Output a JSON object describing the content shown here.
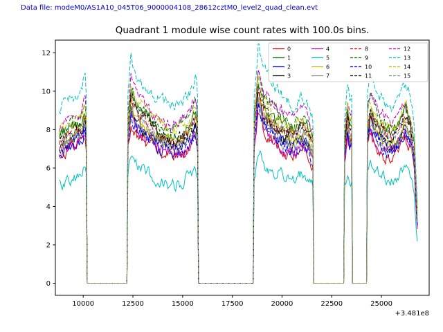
{
  "header": {
    "data_file_label": "Data file: modeM0/AS1A10_045T06_9000004108_28612cztM0_level2_quad_clean.evt"
  },
  "chart_data": {
    "type": "line",
    "title": "Quadrant 1 module wise count rates with 100.0s bins.",
    "xlabel": "",
    "ylabel": "",
    "x_offset_label": "+3.481e8",
    "xlim": [
      8600,
      27400
    ],
    "ylim": [
      -0.63,
      12.66
    ],
    "xticks": [
      10000,
      12500,
      15000,
      17500,
      20000,
      22500,
      25000
    ],
    "yticks": [
      0,
      2,
      4,
      6,
      8,
      10,
      12
    ],
    "grid": false,
    "legend": {
      "position": "upper right",
      "columns": 4
    },
    "sample_step": 50,
    "noise_amp": 0.55,
    "segments": [
      {
        "start": 8800,
        "end": 10150,
        "profile": [
          [
            8800,
            0.92
          ],
          [
            9300,
            0.97
          ],
          [
            9700,
            1.0
          ],
          [
            9950,
            1.03
          ],
          [
            10080,
            1.1
          ],
          [
            10150,
            1.0
          ]
        ]
      },
      {
        "start": 12250,
        "end": 15750,
        "profile": [
          [
            12250,
            1.0
          ],
          [
            12400,
            1.2
          ],
          [
            12700,
            1.1
          ],
          [
            13200,
            1.04
          ],
          [
            13800,
            0.97
          ],
          [
            14400,
            0.93
          ],
          [
            15000,
            0.96
          ],
          [
            15450,
            1.02
          ],
          [
            15650,
            1.08
          ],
          [
            15750,
            1.0
          ]
        ]
      },
      {
        "start": 18600,
        "end": 21550,
        "profile": [
          [
            18600,
            1.0
          ],
          [
            18800,
            1.26
          ],
          [
            19100,
            1.12
          ],
          [
            19600,
            1.04
          ],
          [
            20100,
            0.99
          ],
          [
            20600,
            0.96
          ],
          [
            21000,
            1.0
          ],
          [
            21300,
            0.96
          ],
          [
            21550,
            0.88
          ]
        ]
      },
      {
        "start": 23150,
        "end": 23500,
        "profile": [
          [
            23150,
            0.9
          ],
          [
            23300,
            1.07
          ],
          [
            23420,
            0.96
          ],
          [
            23500,
            1.0
          ]
        ]
      },
      {
        "start": 24300,
        "end": 26800,
        "profile": [
          [
            24300,
            1.02
          ],
          [
            24450,
            1.12
          ],
          [
            24700,
            1.04
          ],
          [
            25100,
            0.97
          ],
          [
            25500,
            0.93
          ],
          [
            25900,
            1.0
          ],
          [
            26200,
            1.08
          ],
          [
            26450,
            1.0
          ],
          [
            26650,
            0.85
          ],
          [
            26800,
            0.42
          ]
        ]
      }
    ],
    "series": [
      {
        "name": "0",
        "color": "#dd0000",
        "dash": false,
        "base": 7.0
      },
      {
        "name": "1",
        "color": "#007000",
        "dash": false,
        "base": 8.3
      },
      {
        "name": "2",
        "color": "#0000ee",
        "dash": false,
        "base": 7.4
      },
      {
        "name": "3",
        "color": "#000000",
        "dash": false,
        "base": 7.6
      },
      {
        "name": "4",
        "color": "#bf00bf",
        "dash": false,
        "base": 7.2
      },
      {
        "name": "5",
        "color": "#00bfbf",
        "dash": false,
        "base": 5.6
      },
      {
        "name": "6",
        "color": "#bfbf00",
        "dash": false,
        "base": 7.8
      },
      {
        "name": "7",
        "color": "#888888",
        "dash": false,
        "base": 7.5
      },
      {
        "name": "8",
        "color": "#dd0000",
        "dash": true,
        "base": 8.0
      },
      {
        "name": "9",
        "color": "#007000",
        "dash": true,
        "base": 8.6
      },
      {
        "name": "10",
        "color": "#0000ee",
        "dash": true,
        "base": 7.3
      },
      {
        "name": "11",
        "color": "#000000",
        "dash": true,
        "base": 8.1
      },
      {
        "name": "12",
        "color": "#bf00bf",
        "dash": true,
        "base": 8.9
      },
      {
        "name": "13",
        "color": "#00bfbf",
        "dash": true,
        "base": 9.8
      },
      {
        "name": "14",
        "color": "#bfbf00",
        "dash": true,
        "base": 8.5
      },
      {
        "name": "15",
        "color": "#888888",
        "dash": true,
        "base": 7.9
      }
    ]
  }
}
